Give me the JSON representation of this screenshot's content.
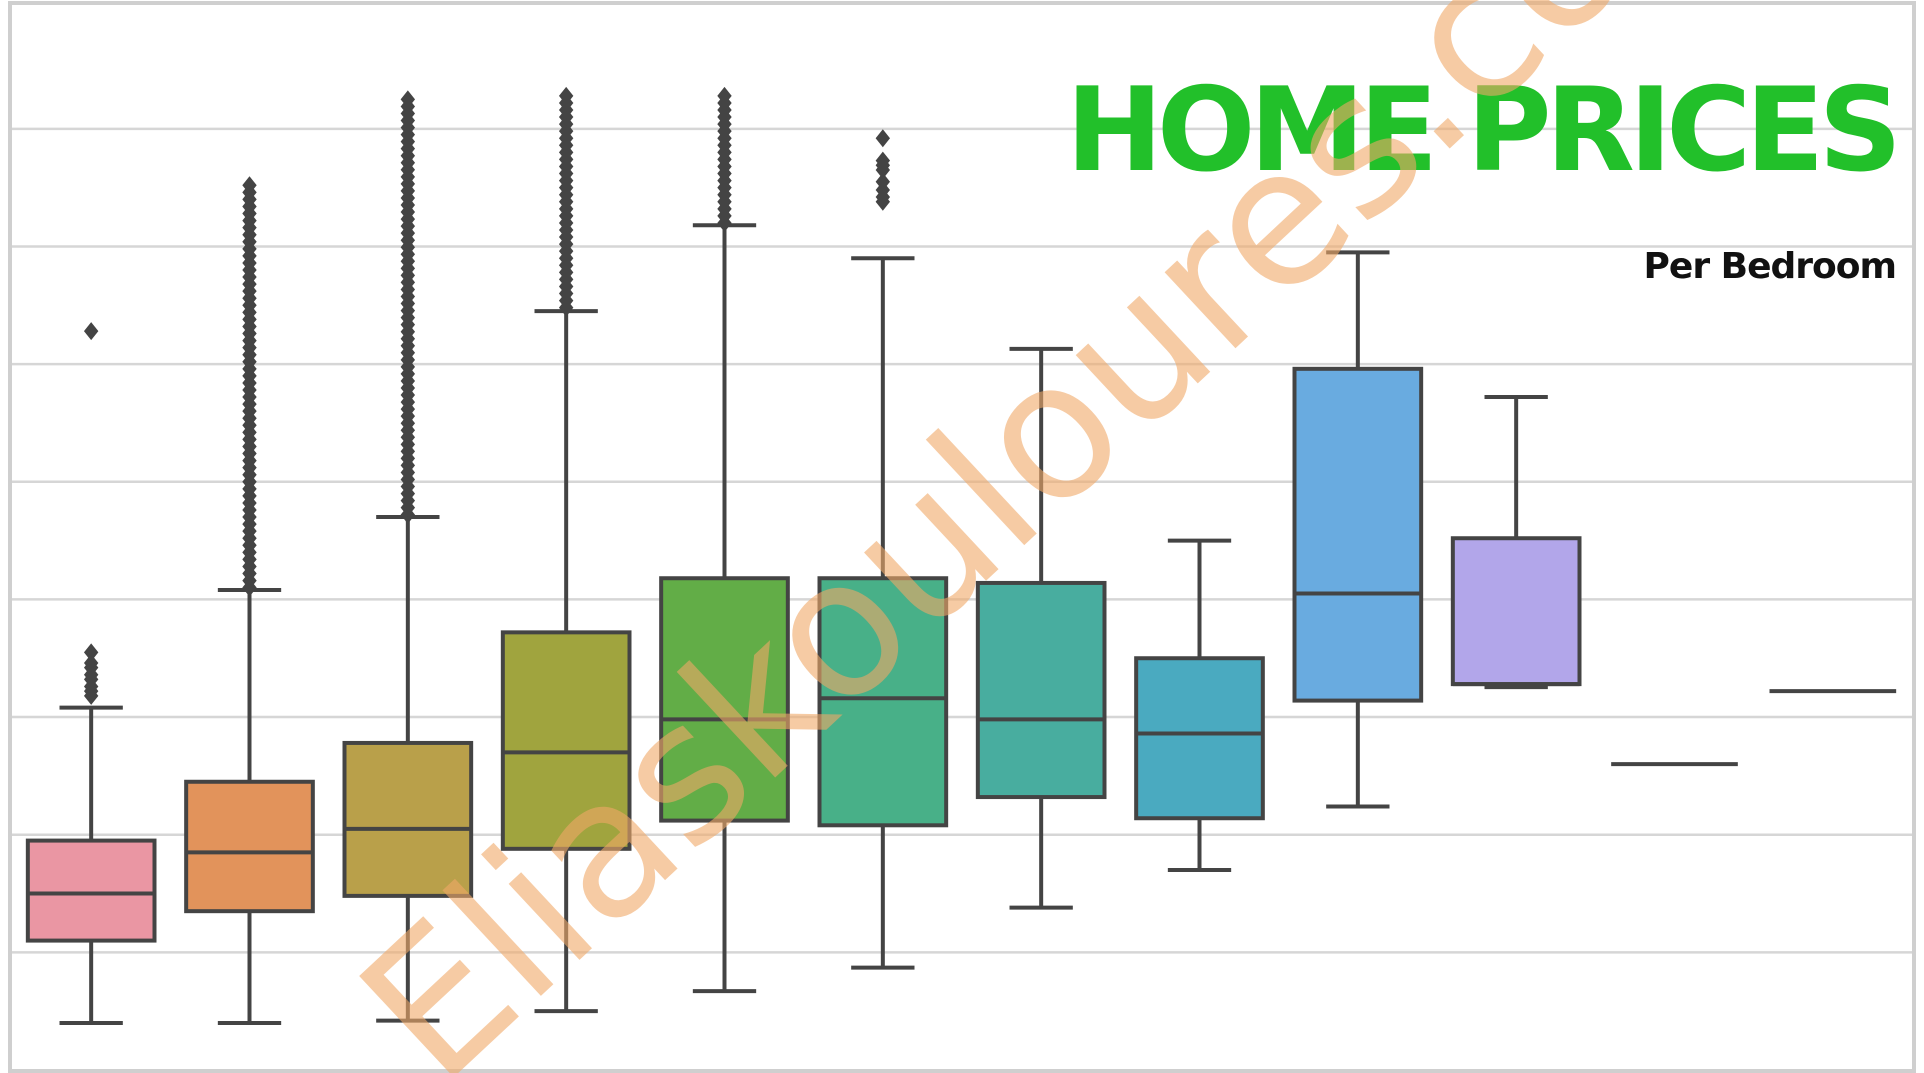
{
  "chart_data": {
    "type": "box",
    "title": "HOME PRICES",
    "subtitle": "Per Bedroom",
    "xlabel": "",
    "ylabel": "",
    "ylim": [
      0,
      850
    ],
    "grid": "horizontal",
    "legend": "none",
    "colors": {
      "title": "#22c02a",
      "subtitle": "#111111",
      "grid": "#d6d6d6",
      "frame": "#cfcfcf",
      "stroke": "#444444",
      "watermark": "#f0a868"
    },
    "boxes": [
      {
        "q1": 110,
        "median": 150,
        "q3": 195,
        "whisker_low": 40,
        "whisker_high": 308,
        "color": "#ea96a3",
        "outliers": [
          318,
          322,
          326,
          332,
          336,
          342,
          346,
          355,
          628
        ]
      },
      {
        "q1": 135,
        "median": 185,
        "q3": 245,
        "whisker_low": 40,
        "whisker_high": 408,
        "color": "#e2935b",
        "outlier_range": [
          410,
          752
        ]
      },
      {
        "q1": 148,
        "median": 205,
        "q3": 278,
        "whisker_low": 42,
        "whisker_high": 470,
        "color": "#b9a04a",
        "outlier_range": [
          472,
          825
        ]
      },
      {
        "q1": 188,
        "median": 270,
        "q3": 372,
        "whisker_low": 50,
        "whisker_high": 645,
        "color": "#a0a43e",
        "outlier_range": [
          648,
          828
        ]
      },
      {
        "q1": 212,
        "median": 298,
        "q3": 418,
        "whisker_low": 67,
        "whisker_high": 718,
        "color": "#62ad47",
        "outlier_range": [
          720,
          828
        ]
      },
      {
        "q1": 208,
        "median": 316,
        "q3": 418,
        "whisker_low": 87,
        "whisker_high": 690,
        "color": "#48b088",
        "outliers": [
          738,
          742,
          748,
          755,
          765,
          769,
          773,
          792
        ]
      },
      {
        "q1": 232,
        "median": 298,
        "q3": 414,
        "whisker_low": 138,
        "whisker_high": 613,
        "color": "#48ad9f",
        "outliers": []
      },
      {
        "q1": 214,
        "median": 286,
        "q3": 350,
        "whisker_low": 170,
        "whisker_high": 450,
        "color": "#4aaac0",
        "outliers": []
      },
      {
        "q1": 314,
        "median": 405,
        "q3": 596,
        "whisker_low": 224,
        "whisker_high": 695,
        "color": "#69abe0",
        "outliers": []
      },
      {
        "q1": 328,
        "median": 328,
        "q3": 452,
        "whisker_low": 328,
        "whisker_high": 572,
        "color": "#b2a6ea",
        "outliers": []
      },
      {
        "q1": 260,
        "median": 260,
        "q3": 260,
        "whisker_low": 260,
        "whisker_high": 260,
        "color": "#444444",
        "outliers": []
      },
      {
        "q1": 322,
        "median": 322,
        "q3": 322,
        "whisker_low": 322,
        "whisker_high": 322,
        "color": "#444444",
        "outliers": []
      }
    ]
  },
  "watermark": "Eliaskouloures.com"
}
